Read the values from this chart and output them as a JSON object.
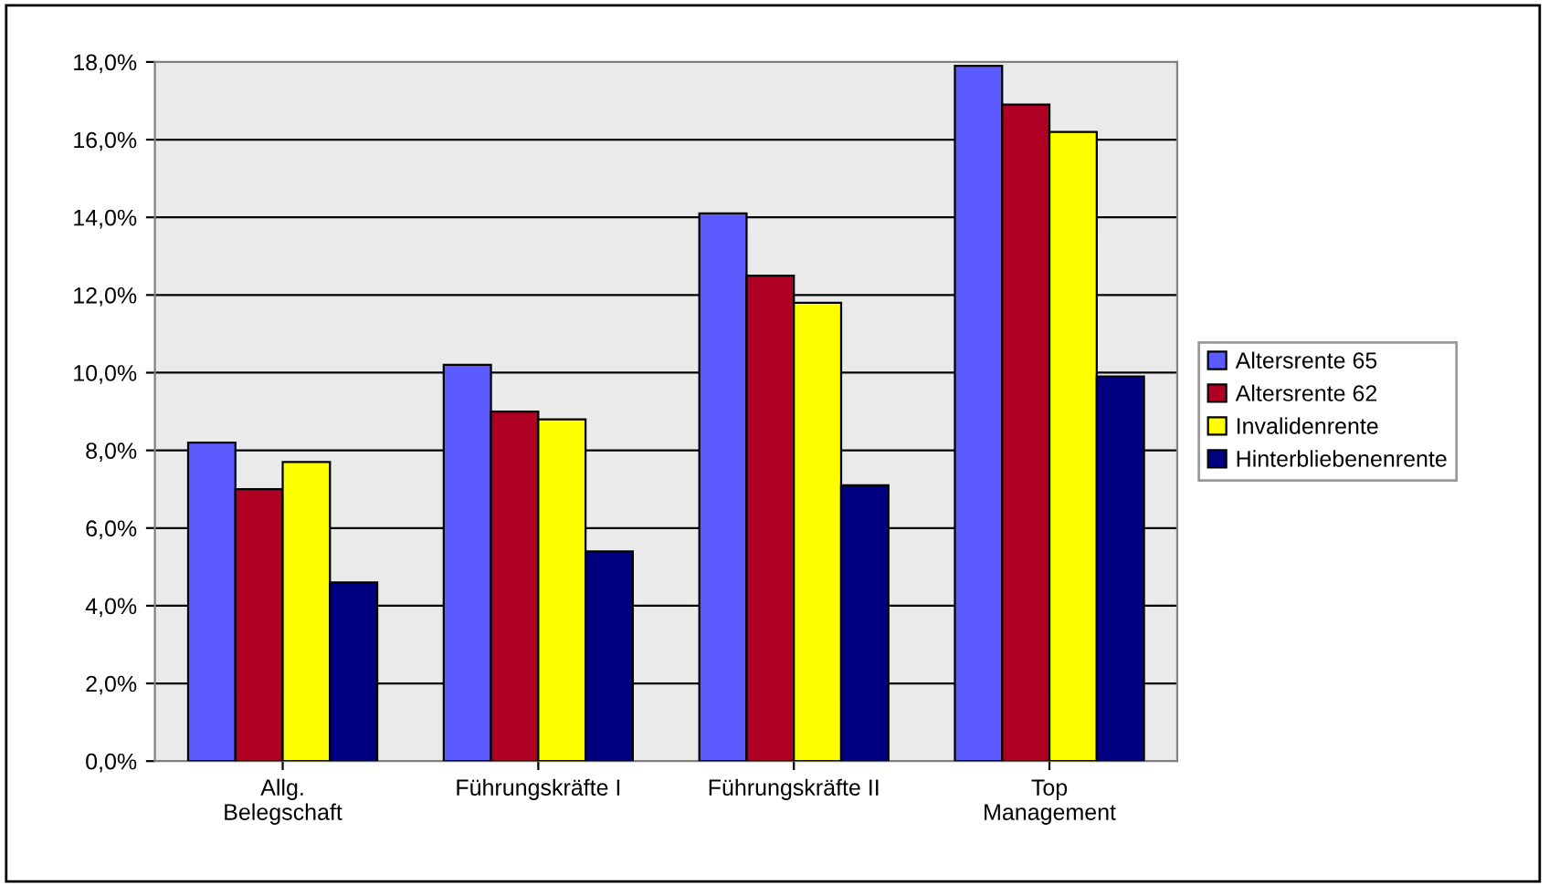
{
  "chart_data": {
    "type": "bar",
    "categories": [
      "Allg.\nBelegschaft",
      "Führungskräfte I",
      "Führungskräfte II",
      "Top\nManagement"
    ],
    "series": [
      {
        "name": "Altersrente 65",
        "color": "#5b5bff",
        "values": [
          8.2,
          10.2,
          14.1,
          17.9
        ]
      },
      {
        "name": "Altersrente 62",
        "color": "#b00024",
        "values": [
          7.0,
          9.0,
          12.5,
          16.9
        ]
      },
      {
        "name": "Invalidenrente",
        "color": "#ffff00",
        "values": [
          7.7,
          8.8,
          11.8,
          16.2
        ]
      },
      {
        "name": "Hinterbliebenenrente",
        "color": "#000080",
        "values": [
          4.6,
          5.4,
          7.1,
          9.9
        ]
      }
    ],
    "ylim": [
      0,
      18
    ],
    "yticks": [
      {
        "value": 0,
        "label": "0,0%"
      },
      {
        "value": 2,
        "label": "2,0%"
      },
      {
        "value": 4,
        "label": "4,0%"
      },
      {
        "value": 6,
        "label": "6,0%"
      },
      {
        "value": 8,
        "label": "8,0%"
      },
      {
        "value": 10,
        "label": "10,0%"
      },
      {
        "value": 12,
        "label": "12,0%"
      },
      {
        "value": 14,
        "label": "14,0%"
      },
      {
        "value": 16,
        "label": "16,0%"
      },
      {
        "value": 18,
        "label": "18,0%"
      }
    ],
    "grid": "y",
    "legend": "right"
  }
}
